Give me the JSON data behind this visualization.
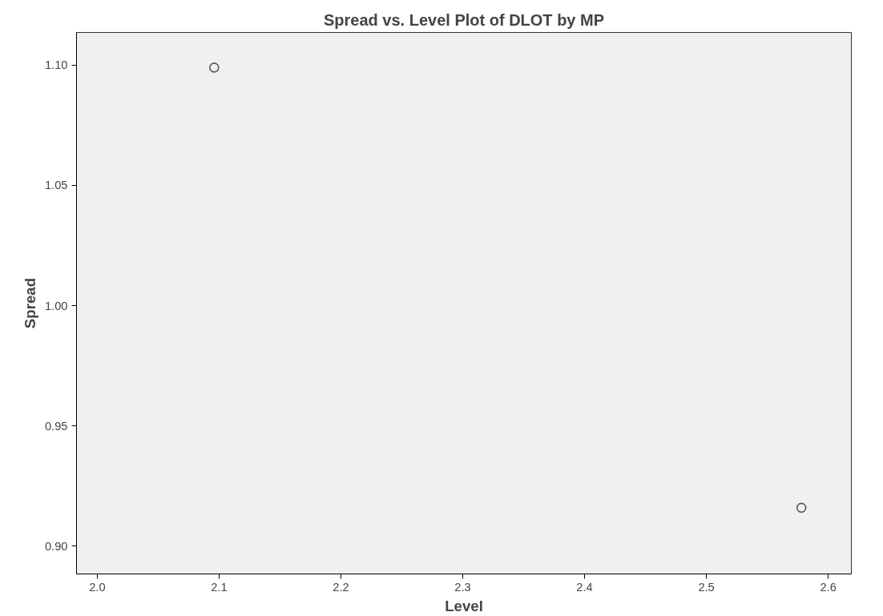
{
  "chart_data": {
    "type": "scatter",
    "title": "Spread vs. Level Plot of DLOT by MP",
    "xlabel": "Level",
    "ylabel": "Spread",
    "x": [
      2.096,
      2.578
    ],
    "series": [
      {
        "color": "#555555",
        "values": [
          1.099,
          0.916
        ]
      }
    ],
    "marker": "circle",
    "grid": false,
    "xlim": [
      1.983,
      2.619
    ],
    "xticks": [
      {
        "value": 2.0,
        "label": "2.0"
      },
      {
        "value": 2.1,
        "label": "2.1"
      },
      {
        "value": 2.2,
        "label": "2.2"
      },
      {
        "value": 2.3,
        "label": "2.3"
      },
      {
        "value": 2.4,
        "label": "2.4"
      },
      {
        "value": 2.5,
        "label": "2.5"
      },
      {
        "value": 2.6,
        "label": "2.6"
      }
    ],
    "ylim": [
      0.8885,
      1.1136
    ],
    "yticks": [
      {
        "value": 0.9,
        "label": "0.90"
      },
      {
        "value": 0.95,
        "label": "0.95"
      },
      {
        "value": 1.0,
        "label": "1.00"
      },
      {
        "value": 1.05,
        "label": "1.05"
      },
      {
        "value": 1.1,
        "label": "1.10"
      }
    ]
  }
}
